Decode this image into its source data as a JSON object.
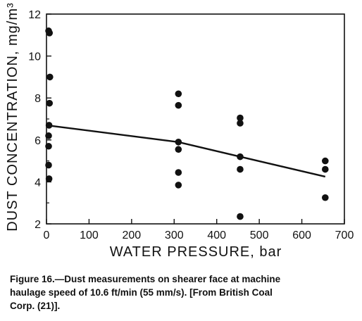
{
  "chart_data": {
    "type": "scatter",
    "xlabel": "WATER PRESSURE, bar",
    "ylabel": "DUST CONCENTRATION, mg/m³",
    "xlim": [
      0,
      700
    ],
    "ylim": [
      2,
      12
    ],
    "x_ticks": [
      "0",
      "100",
      "200",
      "300",
      "400",
      "500",
      "600",
      "700"
    ],
    "y_ticks": [
      "2",
      "4",
      "6",
      "8",
      "10",
      "12"
    ],
    "grid": false,
    "series": [
      {
        "points": [
          [
            5,
            11.2
          ],
          [
            7,
            11.1
          ],
          [
            8,
            9.0
          ],
          [
            7,
            7.75
          ],
          [
            6,
            6.7
          ],
          [
            5,
            6.2
          ],
          [
            5,
            5.7
          ],
          [
            5,
            4.8
          ],
          [
            6,
            4.15
          ],
          [
            310,
            8.2
          ],
          [
            310,
            7.65
          ],
          [
            310,
            5.9
          ],
          [
            310,
            5.55
          ],
          [
            310,
            4.45
          ],
          [
            310,
            3.85
          ],
          [
            455,
            7.05
          ],
          [
            455,
            6.8
          ],
          [
            455,
            5.2
          ],
          [
            455,
            4.6
          ],
          [
            455,
            2.35
          ],
          [
            655,
            5.0
          ],
          [
            655,
            4.6
          ],
          [
            655,
            3.25
          ]
        ]
      }
    ],
    "trend_line": {
      "type": "fit",
      "points": [
        [
          0,
          6.7
        ],
        [
          310,
          5.9
        ],
        [
          455,
          5.2
        ],
        [
          655,
          4.25
        ]
      ]
    }
  },
  "caption": {
    "lines": [
      "Figure 16.—Dust measurements on shearer face at machine",
      "haulage speed of 10.6 ft/min (55 mm/s).   [From British Coal",
      "Corp. (21)]."
    ]
  }
}
